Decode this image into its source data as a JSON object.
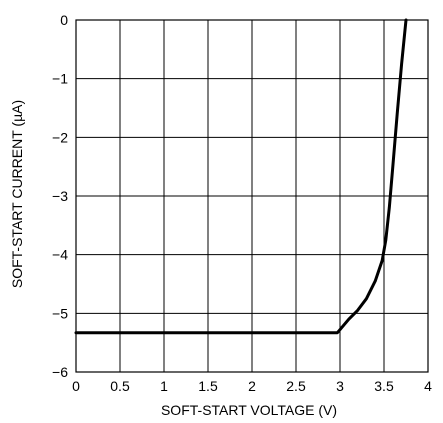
{
  "chart_data": {
    "type": "line",
    "title": "",
    "xlabel": "SOFT-START VOLTAGE (V)",
    "ylabel": "SOFT-START CURRENT (µA)",
    "xlim": [
      0,
      4
    ],
    "ylim": [
      -6,
      0
    ],
    "grid": true,
    "legend": "none",
    "x_ticks": [
      0,
      0.5,
      1,
      1.5,
      2,
      2.5,
      3,
      3.5,
      4
    ],
    "x_tick_labels": [
      "0",
      "0.5",
      "1",
      "1.5",
      "2",
      "2.5",
      "3",
      "3.5",
      "4"
    ],
    "y_ticks": [
      0,
      -1,
      -2,
      -3,
      -4,
      -5,
      -6
    ],
    "y_tick_labels": [
      "0",
      "−1",
      "−2",
      "−3",
      "−4",
      "−5",
      "−6"
    ],
    "series": [
      {
        "line_color": "#000000",
        "x": [
          0,
          2.5,
          2.97,
          3.1,
          3.2,
          3.3,
          3.4,
          3.48,
          3.52,
          3.56,
          3.6,
          3.65,
          3.7,
          3.75
        ],
        "y": [
          -5.33,
          -5.33,
          -5.33,
          -5.1,
          -4.95,
          -4.75,
          -4.45,
          -4.1,
          -3.75,
          -3.2,
          -2.5,
          -1.6,
          -0.75,
          0
        ]
      }
    ]
  }
}
